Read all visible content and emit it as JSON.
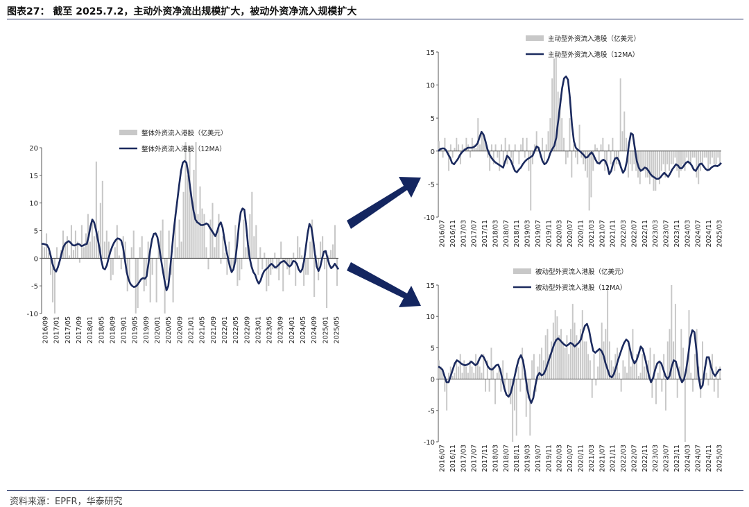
{
  "figure_title": "图表27： 截至 2025.7.2，主动外资净流出规模扩大，被动外资净流入规模扩大",
  "source": "资料来源：EPFR，华泰研究",
  "colors": {
    "bar": "#c8c8c8",
    "line": "#1b2a5e",
    "arrow": "#142660",
    "rule": "#1a2a5e"
  },
  "chart_data": [
    {
      "type": "bar",
      "legend": [
        "整体外资流入港股（亿美元）",
        "整体外资流入港股（12MA）"
      ],
      "ylim": [
        -10,
        20
      ],
      "yticks": [
        -10,
        -5,
        0,
        5,
        10,
        15,
        20
      ],
      "xticks": [
        "2016/09",
        "2017/01",
        "2017/05",
        "2017/09",
        "2018/01",
        "2018/05",
        "2018/09",
        "2019/01",
        "2019/05",
        "2019/09",
        "2020/01",
        "2020/05",
        "2020/09",
        "2021/01",
        "2021/05",
        "2021/09",
        "2022/01",
        "2022/05",
        "2022/09",
        "2023/01",
        "2023/05",
        "2023/09",
        "2024/01",
        "2024/05",
        "2024/09",
        "2025/01",
        "2025/05"
      ],
      "series": [
        {
          "name": "整体外资流入港股（亿美元）",
          "type": "bar",
          "values": [
            2.6,
            2,
            4.5,
            1,
            -3,
            -8,
            -10,
            2,
            0,
            1.5,
            5,
            3,
            4,
            0.5,
            6,
            1.5,
            5,
            3,
            -0.8,
            6,
            2,
            4.5,
            8,
            3,
            7,
            4,
            17.5,
            5,
            10,
            14,
            3,
            5,
            3,
            -4,
            -3,
            2,
            6,
            0.5,
            -2,
            4,
            3,
            -6,
            -4,
            2,
            5,
            -10,
            -9,
            2,
            4,
            -6,
            -5,
            3,
            -8,
            -3,
            0,
            -8,
            3,
            5,
            7,
            -10,
            -4,
            5,
            -3,
            -8,
            8,
            2,
            7,
            3,
            12,
            21,
            15,
            20,
            11,
            16,
            21,
            8,
            13,
            9,
            8,
            2,
            -2,
            7,
            10,
            2,
            5,
            8,
            -1,
            4,
            1,
            -3,
            3,
            -2,
            -2,
            6,
            -5,
            -4,
            -2,
            7,
            2,
            3,
            8,
            12,
            4,
            6,
            -3,
            2,
            -2,
            1,
            -6,
            -5,
            -3,
            -2,
            1,
            -2,
            -4,
            3,
            -6,
            -1,
            -2,
            -3,
            -1,
            1,
            -5,
            4,
            2,
            0.5,
            -5,
            -3,
            -3,
            3,
            7,
            -7,
            0.5,
            -4,
            3,
            4,
            -2,
            -9,
            0.5,
            1.5,
            2.5,
            6,
            -5
          ]
        },
        {
          "name": "整体外资流入港股（12MA）",
          "type": "line",
          "values": [
            2.6,
            2.6,
            2.5,
            2.4,
            1.8,
            0.5,
            -1,
            -2,
            -2.4,
            -1.6,
            -0.5,
            0.8,
            2,
            2.6,
            2.9,
            3.1,
            2.8,
            2.4,
            2.3,
            2.4,
            2.6,
            2.5,
            2.2,
            2.3,
            2.5,
            2.6,
            4,
            5.8,
            7,
            6.5,
            5.2,
            3.5,
            1.8,
            -0.4,
            -1.8,
            -2,
            -1.3,
            0,
            1.2,
            2.1,
            2.8,
            3.3,
            3.6,
            3.5,
            3.2,
            2,
            -0.2,
            -2.5,
            -3.8,
            -4.6,
            -5,
            -5.2,
            -5.1,
            -4.8,
            -4.3,
            -3.8,
            -3.6,
            -3.7,
            -3.3,
            -1,
            1.5,
            3.4,
            4.4,
            4.5,
            3.8,
            2,
            -0.2,
            -2.3,
            -4.2,
            -5.8,
            -5,
            -2,
            1.5,
            5,
            7.8,
            10.5,
            13.2,
            15.8,
            17.3,
            17.6,
            17.3,
            15.5,
            13,
            10.5,
            8.5,
            7,
            6.5,
            6.3,
            6,
            6,
            6.1,
            6.3,
            6.1,
            5.5,
            5,
            4.5,
            4,
            4.8,
            6,
            6.5,
            5.5,
            3.5,
            1.5,
            0,
            -1.5,
            -2.5,
            -2,
            -0.5,
            2.5,
            6,
            8.3,
            9,
            8.8,
            6,
            2.5,
            0,
            -1.5,
            -2.5,
            -3,
            -4,
            -4.6,
            -4,
            -3,
            -2.3,
            -2,
            -1.7,
            -1.3,
            -1,
            -1.3,
            -1.7,
            -1.5,
            -1.2,
            -0.8,
            -0.6,
            -0.5,
            -0.8,
            -1.2,
            -1.5,
            -1.2,
            -0.5,
            -0.6,
            -1,
            -2,
            -2.5,
            -2,
            -0.5,
            2,
            4.5,
            6.2,
            5.6,
            3.5,
            0.8,
            -1.5,
            -2.3,
            -1.5,
            0,
            1.2,
            1.3,
            0,
            -1.2,
            -1.8,
            -1.5,
            -1,
            -1.5,
            -2
          ]
        }
      ]
    },
    {
      "type": "bar",
      "legend": [
        "主动型外资流入港股（亿美元）",
        "主动型外资流入港股（12MA）"
      ],
      "ylim": [
        -10,
        15
      ],
      "yticks": [
        -10,
        -5,
        0,
        5,
        10,
        15
      ],
      "xticks": [
        "2016/07",
        "2016/11",
        "2017/03",
        "2017/07",
        "2017/11",
        "2018/03",
        "2018/07",
        "2018/11",
        "2019/03",
        "2019/07",
        "2019/11",
        "2020/03",
        "2020/07",
        "2020/11",
        "2021/03",
        "2021/07",
        "2021/11",
        "2022/03",
        "2022/07",
        "2022/11",
        "2023/03",
        "2023/07",
        "2023/11",
        "2024/03",
        "2024/07",
        "2024/11",
        "2025/03"
      ],
      "series": [
        {
          "name": "主动型外资流入港股（亿美元）",
          "type": "bar",
          "values": [
            1.5,
            0.5,
            -1,
            2,
            0,
            -3,
            1,
            -1,
            0.5,
            2,
            1,
            -2,
            1,
            0.5,
            2,
            1,
            -1,
            2,
            1,
            0.5,
            5,
            1,
            3,
            2,
            1,
            -1,
            -3,
            1,
            -2,
            1,
            -1,
            -3,
            1,
            -2,
            2,
            -2,
            1,
            -1,
            -2,
            1,
            0,
            -2,
            1,
            2,
            -1,
            2,
            -3,
            -9,
            -2,
            1,
            3,
            0,
            -1,
            2,
            -2,
            1,
            3,
            5,
            11,
            14,
            15,
            9,
            8,
            5,
            2,
            -2,
            -1,
            5,
            -4,
            1,
            -1,
            -2,
            4,
            -1,
            -2,
            -3,
            -4,
            -9,
            -7,
            -3,
            1,
            0.5,
            -2,
            1,
            2,
            -3,
            -2,
            1,
            -2,
            2,
            -3,
            -2,
            -2,
            11,
            3,
            6,
            2,
            -4,
            -2,
            -3,
            -2,
            -3,
            -4,
            -5,
            -3,
            -3,
            -4,
            -4,
            -5,
            -4,
            -6,
            -6,
            -4,
            -5,
            -3,
            -2,
            -4,
            -2,
            -3,
            -2,
            -2,
            -1,
            -3,
            -4,
            -3,
            -2,
            -3,
            -1,
            -2,
            -2,
            -1,
            -1,
            -4,
            -5,
            -3,
            -2,
            -1,
            -1,
            -3,
            -2,
            -1,
            -2,
            -2,
            -1,
            -2
          ]
        },
        {
          "name": "主动型外资流入港股（12MA）",
          "type": "line",
          "values": [
            0,
            0.3,
            0.4,
            0.4,
            0.1,
            -0.5,
            -1,
            -1.8,
            -2,
            -1.6,
            -1.2,
            -0.6,
            -0.2,
            0.1,
            0.3,
            0.5,
            0.5,
            0.5,
            0.6,
            0.8,
            1.2,
            2.1,
            2.9,
            2.5,
            1.5,
            0.3,
            -0.5,
            -1,
            -1.4,
            -1.7,
            -1.9,
            -2.1,
            -2.3,
            -2.5,
            -1.6,
            -0.7,
            -1,
            -1.5,
            -2.3,
            -3,
            -3.2,
            -2.8,
            -2.5,
            -2,
            -1.6,
            -1.3,
            -1.1,
            -0.9,
            -0.7,
            0,
            0.7,
            0.5,
            -0.5,
            -1.5,
            -2,
            -1.8,
            -1.2,
            -0.3,
            0.3,
            0.8,
            2,
            4.5,
            7,
            9.5,
            11,
            11.3,
            10.8,
            8,
            4,
            1.5,
            0.5,
            0.2,
            0,
            -0.3,
            -0.6,
            -1,
            -0.9,
            -0.5,
            -0.2,
            -0.6,
            -1.3,
            -1.8,
            -1.9,
            -1.5,
            -1.3,
            -1.5,
            -2.2,
            -3.5,
            -3,
            -1.8,
            -1.1,
            -1,
            -1.5,
            -2.5,
            -3.3,
            -2.8,
            -1.5,
            1,
            2.7,
            2.5,
            0.5,
            -1.5,
            -2.5,
            -3,
            -2.8,
            -2.5,
            -2.6,
            -3,
            -3.5,
            -3.8,
            -4,
            -4.2,
            -4.2,
            -4,
            -3.6,
            -3.3,
            -3.6,
            -3.9,
            -3.4,
            -2.8,
            -2.4,
            -2,
            -2.2,
            -2.6,
            -2.6,
            -2.2,
            -1.8,
            -1.6,
            -1.8,
            -2.2,
            -2.8,
            -3,
            -2.5,
            -2,
            -1.9,
            -2.3,
            -2.7,
            -2.9,
            -2.8,
            -2.5,
            -2.3,
            -2.2,
            -2.3,
            -2.1,
            -1.8
          ]
        }
      ]
    },
    {
      "type": "bar",
      "legend": [
        "被动型外资流入港股（亿美元）",
        "被动型外资流入港股（12MA）"
      ],
      "ylim": [
        -10,
        15
      ],
      "yticks": [
        -10,
        -5,
        0,
        5,
        10,
        15
      ],
      "xticks": [
        "2016/07",
        "2016/11",
        "2017/03",
        "2017/07",
        "2017/11",
        "2018/03",
        "2018/07",
        "2018/11",
        "2019/03",
        "2019/07",
        "2019/11",
        "2020/03",
        "2020/07",
        "2020/11",
        "2021/03",
        "2021/07",
        "2021/11",
        "2022/03",
        "2022/07",
        "2022/11",
        "2023/03",
        "2023/07",
        "2023/11",
        "2024/03",
        "2024/07",
        "2024/11",
        "2025/03"
      ],
      "series": [
        {
          "name": "被动型外资流入港股（亿美元）",
          "type": "bar",
          "values": [
            3,
            2,
            1,
            -2,
            -5,
            1,
            2,
            0.5,
            1,
            3,
            2,
            4,
            1,
            3,
            2,
            1,
            3,
            2,
            1,
            4,
            3,
            2,
            1,
            4,
            -2,
            3,
            -2,
            5,
            2,
            -4,
            1,
            2,
            -2,
            3,
            -2,
            1,
            -3,
            -4,
            -10,
            -5,
            -9,
            2,
            -2,
            5,
            1,
            -6,
            -3,
            -9,
            3,
            4,
            -2,
            2,
            4,
            5,
            3,
            7,
            8,
            4,
            6,
            9,
            11,
            10,
            7,
            8,
            6,
            5,
            7,
            4,
            8,
            12,
            9,
            7,
            5,
            8,
            11,
            6,
            6,
            4,
            3,
            -3,
            4,
            -1,
            2,
            5,
            9,
            6,
            8,
            15,
            6,
            3,
            2,
            4,
            5,
            1,
            -2,
            3,
            2,
            1,
            5,
            2,
            8,
            3,
            4,
            0.5,
            1,
            4,
            2,
            3,
            3,
            5,
            -3,
            4,
            -4,
            1,
            3,
            -2,
            4,
            -5,
            6,
            8,
            15,
            6,
            12,
            -3,
            2,
            8,
            5,
            -10,
            3,
            11,
            1,
            -2,
            4,
            8,
            2,
            -3,
            6,
            2,
            1,
            -1,
            3,
            4,
            -2,
            2,
            -3,
            2
          ]
        },
        {
          "name": "被动型外资流入港股（12MA）",
          "type": "line",
          "values": [
            2,
            1.8,
            1.5,
            0.5,
            -0.5,
            -0.5,
            0.5,
            1.5,
            2.5,
            3,
            2.8,
            2.5,
            2.3,
            2.2,
            2.3,
            2.5,
            2.8,
            2.5,
            2.2,
            2.5,
            3.3,
            3.8,
            3.5,
            2.8,
            2,
            1.6,
            1.5,
            1.8,
            2.2,
            2.3,
            1.5,
            0,
            -1.5,
            -2.5,
            -2.8,
            -2.3,
            -1,
            0.5,
            2,
            3.2,
            3.8,
            3,
            1,
            -1.5,
            -3,
            -3.8,
            -3,
            -1,
            0.5,
            1,
            0.6,
            0.8,
            1.5,
            2.5,
            3.5,
            4.5,
            5.5,
            6.2,
            6.5,
            6.2,
            5.8,
            5.5,
            5.3,
            5.5,
            5.8,
            5.6,
            5.2,
            5.5,
            5.8,
            6.3,
            7.5,
            8.5,
            8.8,
            7.8,
            6,
            4.5,
            4.2,
            4.5,
            4.8,
            4.5,
            3.8,
            2.5,
            1.5,
            0.5,
            0.3,
            0.8,
            1.8,
            3,
            4,
            5,
            5.8,
            6.3,
            6,
            4.5,
            3.2,
            2.5,
            3,
            4,
            5.2,
            4.8,
            3.5,
            2,
            0.5,
            -0.5,
            0.2,
            1.5,
            2.5,
            2.8,
            2.5,
            1.5,
            0.5,
            0,
            0.5,
            2,
            3,
            2.8,
            1.5,
            0.3,
            -0.5,
            0,
            1.5,
            3.8,
            6.5,
            7.8,
            7.5,
            4.5,
            0.5,
            -1.5,
            -1,
            1.5,
            3.5,
            3.5,
            2,
            1,
            0.5,
            1,
            1.5,
            1.5
          ]
        }
      ]
    }
  ]
}
